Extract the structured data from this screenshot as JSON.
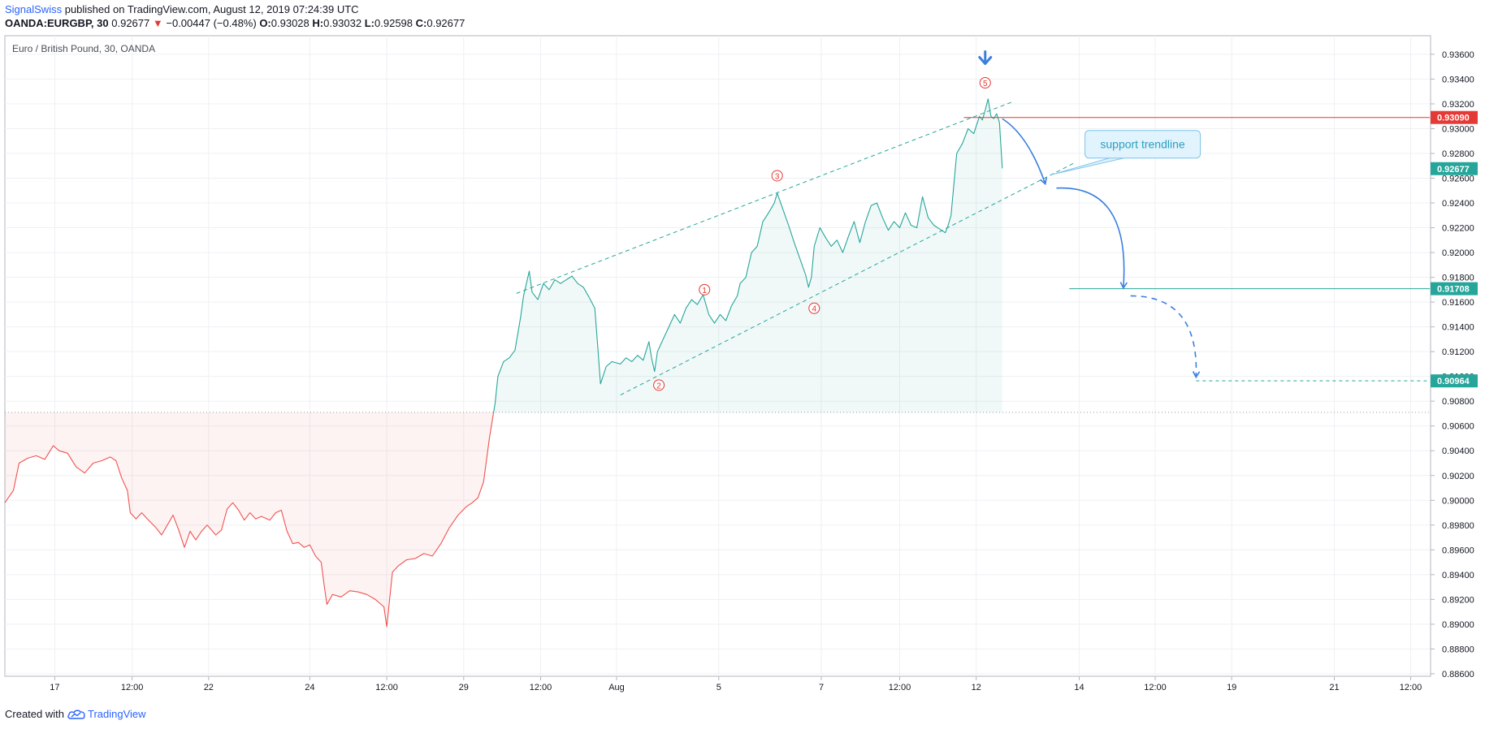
{
  "header": {
    "author": "SignalSwiss",
    "published": "published on TradingView.com, August 12, 2019 07:24:39 UTC",
    "symbol": "OANDA:EURGBP, 30",
    "last": "0.92677",
    "change_arrow": "▼",
    "change": "−0.00447 (−0.48%)",
    "o_label": "O:",
    "o": "0.93028",
    "h_label": "H:",
    "h": "0.93032",
    "l_label": "L:",
    "l": "0.92598",
    "c_label": "C:",
    "c": "0.92677"
  },
  "footer": {
    "created": "Created with",
    "brand": "TradingView",
    "logo_icon": "tradingview-cloud-icon"
  },
  "colors": {
    "up": "#26a69a",
    "down": "#ef5350",
    "resistance": "#e53935",
    "arrow": "#3a7ee0",
    "grid": "#eef0f3"
  },
  "chart_data": {
    "type": "line",
    "title": "Euro / British Pound, 30, OANDA",
    "ylim": [
      0.8858,
      0.9375
    ],
    "yticks": [
      "0.93600",
      "0.93400",
      "0.93200",
      "0.93000",
      "0.92800",
      "0.92600",
      "0.92400",
      "0.92200",
      "0.92000",
      "0.91800",
      "0.91600",
      "0.91400",
      "0.91200",
      "0.91000",
      "0.90800",
      "0.90600",
      "0.90400",
      "0.90200",
      "0.90000",
      "0.89800",
      "0.89600",
      "0.89400",
      "0.89200",
      "0.89000",
      "0.88800",
      "0.88600"
    ],
    "ytick_values": [
      0.936,
      0.934,
      0.932,
      0.93,
      0.928,
      0.926,
      0.924,
      0.922,
      0.92,
      0.918,
      0.916,
      0.914,
      0.912,
      0.91,
      0.908,
      0.906,
      0.904,
      0.902,
      0.9,
      0.898,
      0.896,
      0.894,
      0.892,
      0.89,
      0.888,
      0.886
    ],
    "xlim": [
      0,
      1000
    ],
    "xticks": [
      {
        "label": "17",
        "x": 35.0
      },
      {
        "label": "12:00",
        "x": 89.3
      },
      {
        "label": "22",
        "x": 143.0
      },
      {
        "label": "24",
        "x": 214.0
      },
      {
        "label": "12:00",
        "x": 268.0
      },
      {
        "label": "29",
        "x": 322.0
      },
      {
        "label": "12:00",
        "x": 376.0
      },
      {
        "label": "Aug",
        "x": 429.3
      },
      {
        "label": "5",
        "x": 501.0
      },
      {
        "label": "7",
        "x": 573.0
      },
      {
        "label": "12:00",
        "x": 628.0
      },
      {
        "label": "12",
        "x": 681.7
      },
      {
        "label": "14",
        "x": 754.0
      },
      {
        "label": "12:00",
        "x": 807.3
      },
      {
        "label": "19",
        "x": 861.0
      },
      {
        "label": "21",
        "x": 933.0
      },
      {
        "label": "12:00",
        "x": 986.6
      }
    ],
    "baseline": 0.9071,
    "series": [
      {
        "points": [
          [
            0,
            0.8998
          ],
          [
            6,
            0.9008
          ],
          [
            10,
            0.903
          ],
          [
            16,
            0.9034
          ],
          [
            22,
            0.9036
          ],
          [
            28,
            0.9033
          ],
          [
            34,
            0.9044
          ],
          [
            38,
            0.904
          ],
          [
            44,
            0.9038
          ],
          [
            50,
            0.9027
          ],
          [
            56,
            0.9022
          ],
          [
            62,
            0.903
          ],
          [
            68,
            0.9032
          ],
          [
            74,
            0.9035
          ],
          [
            78,
            0.9032
          ],
          [
            82,
            0.9018
          ],
          [
            86,
            0.9008
          ],
          [
            88,
            0.899
          ],
          [
            92,
            0.8985
          ],
          [
            96,
            0.899
          ],
          [
            100,
            0.8985
          ],
          [
            106,
            0.8978
          ],
          [
            110,
            0.8972
          ],
          [
            114,
            0.898
          ],
          [
            118,
            0.8988
          ],
          [
            122,
            0.8976
          ],
          [
            126,
            0.8962
          ],
          [
            130,
            0.8975
          ],
          [
            134,
            0.8968
          ],
          [
            138,
            0.8975
          ],
          [
            142,
            0.898
          ],
          [
            148,
            0.8972
          ],
          [
            152,
            0.8976
          ],
          [
            156,
            0.8993
          ],
          [
            160,
            0.8998
          ],
          [
            164,
            0.8992
          ],
          [
            168,
            0.8984
          ],
          [
            172,
            0.899
          ],
          [
            176,
            0.8985
          ],
          [
            180,
            0.8987
          ],
          [
            186,
            0.8984
          ],
          [
            190,
            0.899
          ],
          [
            194,
            0.8992
          ],
          [
            198,
            0.8975
          ],
          [
            202,
            0.8965
          ],
          [
            206,
            0.8966
          ],
          [
            210,
            0.8962
          ],
          [
            214,
            0.8964
          ],
          [
            218,
            0.8955
          ],
          [
            222,
            0.895
          ],
          [
            224,
            0.8932
          ],
          [
            226,
            0.8916
          ],
          [
            230,
            0.8924
          ],
          [
            236,
            0.8922
          ],
          [
            242,
            0.8927
          ],
          [
            248,
            0.8926
          ],
          [
            254,
            0.8924
          ],
          [
            260,
            0.892
          ],
          [
            266,
            0.8914
          ],
          [
            268,
            0.8898
          ],
          [
            272,
            0.8942
          ],
          [
            276,
            0.8947
          ],
          [
            282,
            0.8952
          ],
          [
            288,
            0.8953
          ],
          [
            294,
            0.8957
          ],
          [
            300,
            0.8955
          ],
          [
            306,
            0.8965
          ],
          [
            312,
            0.8978
          ],
          [
            318,
            0.8988
          ],
          [
            324,
            0.8995
          ],
          [
            328,
            0.8998
          ],
          [
            332,
            0.9002
          ],
          [
            336,
            0.9015
          ],
          [
            340,
            0.905
          ],
          [
            344,
            0.9078
          ],
          [
            346,
            0.91
          ],
          [
            350,
            0.9112
          ],
          [
            354,
            0.9115
          ],
          [
            358,
            0.9121
          ],
          [
            362,
            0.9148
          ],
          [
            364,
            0.9165
          ],
          [
            366,
            0.9175
          ],
          [
            368,
            0.9185
          ],
          [
            370,
            0.9168
          ],
          [
            374,
            0.9162
          ],
          [
            378,
            0.9175
          ],
          [
            382,
            0.917
          ],
          [
            386,
            0.9178
          ],
          [
            390,
            0.9175
          ],
          [
            394,
            0.9178
          ],
          [
            398,
            0.9181
          ],
          [
            402,
            0.9175
          ],
          [
            406,
            0.9172
          ],
          [
            410,
            0.9164
          ],
          [
            414,
            0.9155
          ],
          [
            416,
            0.9125
          ],
          [
            418,
            0.9094
          ],
          [
            422,
            0.9108
          ],
          [
            426,
            0.9112
          ],
          [
            432,
            0.911
          ],
          [
            436,
            0.9115
          ],
          [
            440,
            0.9112
          ],
          [
            444,
            0.9117
          ],
          [
            448,
            0.9113
          ],
          [
            452,
            0.9128
          ],
          [
            454,
            0.9114
          ],
          [
            456,
            0.9104
          ],
          [
            458,
            0.912
          ],
          [
            462,
            0.913
          ],
          [
            466,
            0.914
          ],
          [
            470,
            0.915
          ],
          [
            474,
            0.9143
          ],
          [
            478,
            0.9155
          ],
          [
            482,
            0.9162
          ],
          [
            486,
            0.9158
          ],
          [
            490,
            0.9166
          ],
          [
            494,
            0.915
          ],
          [
            498,
            0.9143
          ],
          [
            502,
            0.915
          ],
          [
            506,
            0.9145
          ],
          [
            510,
            0.9157
          ],
          [
            514,
            0.9165
          ],
          [
            516,
            0.9175
          ],
          [
            520,
            0.918
          ],
          [
            524,
            0.92
          ],
          [
            528,
            0.9205
          ],
          [
            532,
            0.9225
          ],
          [
            536,
            0.9232
          ],
          [
            540,
            0.924
          ],
          [
            542,
            0.9248
          ],
          [
            546,
            0.9235
          ],
          [
            550,
            0.9222
          ],
          [
            554,
            0.9208
          ],
          [
            558,
            0.9195
          ],
          [
            562,
            0.9182
          ],
          [
            564,
            0.9172
          ],
          [
            566,
            0.918
          ],
          [
            568,
            0.9205
          ],
          [
            572,
            0.922
          ],
          [
            576,
            0.9212
          ],
          [
            580,
            0.9205
          ],
          [
            584,
            0.921
          ],
          [
            588,
            0.92
          ],
          [
            592,
            0.9213
          ],
          [
            596,
            0.9225
          ],
          [
            600,
            0.9208
          ],
          [
            604,
            0.9225
          ],
          [
            608,
            0.9238
          ],
          [
            612,
            0.924
          ],
          [
            616,
            0.9228
          ],
          [
            620,
            0.9218
          ],
          [
            624,
            0.9225
          ],
          [
            628,
            0.922
          ],
          [
            632,
            0.9232
          ],
          [
            636,
            0.9222
          ],
          [
            640,
            0.922
          ],
          [
            644,
            0.9245
          ],
          [
            648,
            0.9228
          ],
          [
            652,
            0.9222
          ],
          [
            656,
            0.9219
          ],
          [
            660,
            0.9216
          ],
          [
            662,
            0.9222
          ],
          [
            664,
            0.923
          ],
          [
            666,
            0.9255
          ],
          [
            668,
            0.928
          ],
          [
            672,
            0.9288
          ],
          [
            676,
            0.93
          ],
          [
            680,
            0.9296
          ],
          [
            684,
            0.931
          ],
          [
            686,
            0.9307
          ],
          [
            688,
            0.9315
          ],
          [
            690,
            0.9324
          ],
          [
            692,
            0.931
          ],
          [
            694,
            0.9308
          ],
          [
            696,
            0.9312
          ],
          [
            698,
            0.9305
          ],
          [
            700,
            0.9268
          ]
        ]
      }
    ],
    "annotations": {
      "resistance": {
        "value": 0.9309,
        "label": "0.93090",
        "x_start": 673
      },
      "current": {
        "value": 0.92677,
        "label": "0.92677"
      },
      "target1": {
        "value": 0.91708,
        "label": "0.91708",
        "x_start": 747
      },
      "target2": {
        "value": 0.90964,
        "label": "0.90964",
        "x_start": 836
      },
      "channel_upper": [
        [
          359,
          0.9167
        ],
        [
          708,
          0.9322
        ]
      ],
      "channel_lower": [
        [
          432,
          0.9085
        ],
        [
          750,
          0.9272
        ]
      ],
      "support_trendline_label": "support trendline",
      "waves": [
        {
          "label": "1",
          "x": 491,
          "y": 0.917
        },
        {
          "label": "2",
          "x": 459,
          "y": 0.9093
        },
        {
          "label": "3",
          "x": 542,
          "y": 0.9262
        },
        {
          "label": "4",
          "x": 568,
          "y": 0.9155
        },
        {
          "label": "5",
          "x": 688,
          "y": 0.9337
        }
      ],
      "down_arrow_icon": {
        "x": 688,
        "y": 0.9355
      },
      "forecast_arrows": [
        {
          "style": "solid",
          "from": [
            700,
            0.9308
          ],
          "via": [
            718,
            0.9295
          ],
          "to": [
            730,
            0.9256
          ]
        },
        {
          "style": "solid",
          "from": [
            738,
            0.9252
          ],
          "via": [
            790,
            0.9255
          ],
          "to": [
            785,
            0.9172
          ]
        },
        {
          "style": "dashed",
          "from": [
            790,
            0.9165
          ],
          "via": [
            838,
            0.9165
          ],
          "to": [
            836,
            0.91
          ]
        }
      ]
    }
  }
}
